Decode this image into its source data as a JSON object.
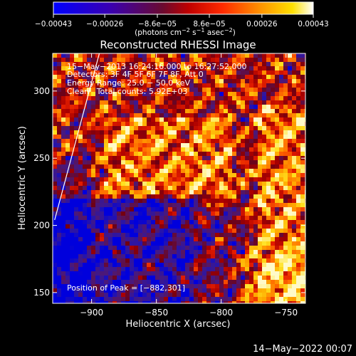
{
  "chart_data": {
    "type": "heatmap",
    "title": "Reconstructed RHESSI Image",
    "xlabel": "Heliocentric X (arcsec)",
    "ylabel": "Heliocentric Y (arcsec)",
    "xlim": [
      -930,
      -735
    ],
    "ylim": [
      142,
      328
    ],
    "x_ticks": [
      -900,
      -850,
      -800,
      -750
    ],
    "x_tick_labels": [
      "−900",
      "−850",
      "−800",
      "−750"
    ],
    "y_ticks": [
      150,
      200,
      250,
      300
    ],
    "y_tick_labels": [
      "150",
      "200",
      "250",
      "300"
    ],
    "colorbar": {
      "range": [
        -0.00043,
        0.00043
      ],
      "ticks": [
        -0.00043,
        -0.00026,
        -8.6e-05,
        8.6e-05,
        0.00026,
        0.00043
      ],
      "tick_labels": [
        "−0.00043",
        "−0.00026",
        "−8.6e−05",
        "8.6e−05",
        "0.00026",
        "0.00043"
      ],
      "label_main": "(photons cm",
      "label_exp1": "−2",
      "label_mid": " s",
      "label_exp2": "−1",
      "label_end": " asec",
      "label_exp3": "−2",
      "label_close": ")",
      "colors": [
        "#0000ff",
        "#4b0082",
        "#8b0000",
        "#ff0000",
        "#ff8c00",
        "#ffd700",
        "#ffffff"
      ]
    },
    "annotations": [
      "15−May−2013 16:24:16.000 to 16:27:52.000",
      "Detectors: 3F 4F 5F 6F 7F 8F, Att 0",
      "Energy Range: 25.0 − 50.0 keV",
      "Clean   Total counts: 5.92E+03"
    ],
    "peak_label": "Position of Peak = [−882,301]",
    "limb_line": [
      [
        -928.5,
        204
      ],
      [
        -894,
        328
      ]
    ],
    "grid": false,
    "legend": "none"
  },
  "footer": {
    "timestamp": "14−May−2022 00:07"
  }
}
